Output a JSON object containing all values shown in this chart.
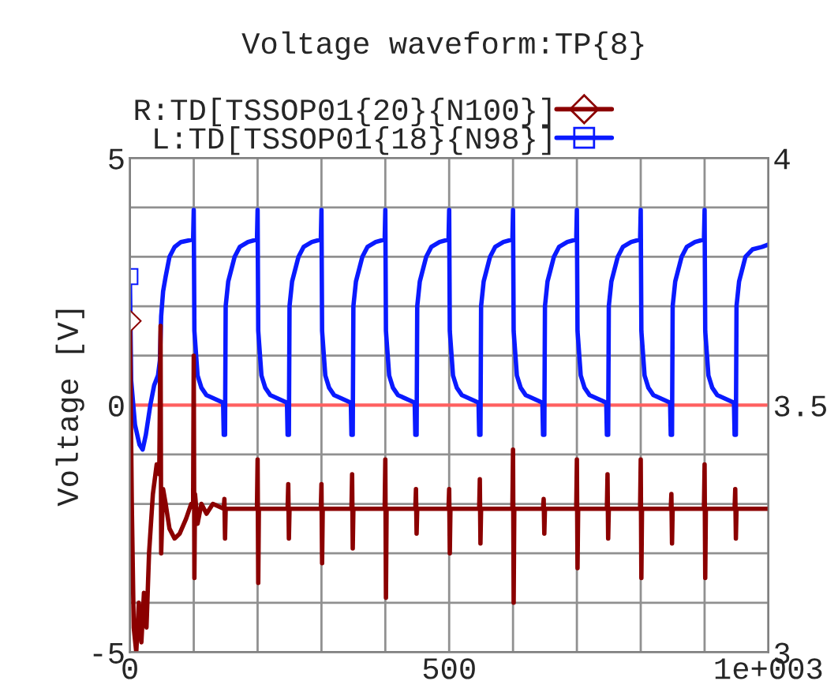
{
  "chart_data": {
    "type": "line",
    "title": "Voltage waveform:TP{8}",
    "ylabel": "Voltage [V]",
    "xlim": [
      0,
      1000
    ],
    "xticks": [
      0,
      {
        "value": 100,
        "label": null
      },
      {
        "value": 200,
        "label": null
      },
      {
        "value": 300,
        "label": null
      },
      {
        "value": 400,
        "label": null
      },
      500,
      {
        "value": 600,
        "label": null
      },
      {
        "value": 700,
        "label": null
      },
      {
        "value": 800,
        "label": null
      },
      {
        "value": 900,
        "label": null
      },
      {
        "value": 1000,
        "label": "1e+003"
      }
    ],
    "ylim": [
      -5,
      5
    ],
    "yticks": [
      -5,
      {
        "value": -4,
        "label": null
      },
      {
        "value": -3,
        "label": null
      },
      {
        "value": -2,
        "label": null
      },
      {
        "value": -1,
        "label": null
      },
      0,
      {
        "value": 1,
        "label": null
      },
      {
        "value": 2,
        "label": null
      },
      {
        "value": 3,
        "label": null
      },
      {
        "value": 4,
        "label": null
      },
      5
    ],
    "y2lim": [
      3,
      4
    ],
    "y2ticks": [
      3,
      3.5,
      4
    ],
    "grid": true,
    "legend": "top",
    "line_style": "solid",
    "ref_lines": [
      {
        "axis": "y",
        "value": 0,
        "color": "#ff6060"
      }
    ],
    "series": [
      {
        "name": "R:TD[TSSOP01{20}{N100}]",
        "color": "#8b0000",
        "axis": "y2",
        "x": [
          0,
          3,
          6,
          10,
          14,
          18,
          22,
          26,
          30,
          36,
          42,
          46,
          48,
          49,
          52,
          56,
          62,
          70,
          78,
          88,
          96,
          99,
          100,
          101,
          102,
          106,
          112,
          120,
          130,
          147,
          148,
          149,
          150,
          199,
          200,
          201,
          202,
          247,
          248,
          249,
          250,
          299,
          300,
          301,
          302,
          347,
          348,
          349,
          350,
          399,
          400,
          401,
          402,
          447,
          448,
          449,
          450,
          499,
          500,
          501,
          502,
          547,
          548,
          549,
          550,
          599,
          600,
          601,
          602,
          647,
          648,
          649,
          650,
          699,
          700,
          701,
          702,
          747,
          748,
          749,
          750,
          799,
          800,
          801,
          802,
          847,
          848,
          849,
          850,
          899,
          900,
          901,
          902,
          947,
          948,
          949,
          950,
          1000
        ],
        "values": [
          3.67,
          3.3,
          3.05,
          3.0,
          3.1,
          3.02,
          3.12,
          3.05,
          3.2,
          3.32,
          3.38,
          3.36,
          3.66,
          3.2,
          3.33,
          3.3,
          3.25,
          3.23,
          3.24,
          3.27,
          3.3,
          3.3,
          3.6,
          3.15,
          3.32,
          3.26,
          3.3,
          3.28,
          3.3,
          3.29,
          3.31,
          3.23,
          3.29,
          3.29,
          3.39,
          3.14,
          3.29,
          3.29,
          3.34,
          3.23,
          3.29,
          3.29,
          3.34,
          3.18,
          3.29,
          3.29,
          3.36,
          3.21,
          3.29,
          3.29,
          3.39,
          3.11,
          3.29,
          3.29,
          3.33,
          3.24,
          3.29,
          3.29,
          3.33,
          3.2,
          3.29,
          3.29,
          3.35,
          3.22,
          3.29,
          3.29,
          3.41,
          3.1,
          3.29,
          3.29,
          3.31,
          3.24,
          3.29,
          3.29,
          3.39,
          3.17,
          3.29,
          3.29,
          3.36,
          3.23,
          3.29,
          3.29,
          3.39,
          3.15,
          3.29,
          3.29,
          3.32,
          3.22,
          3.29,
          3.29,
          3.38,
          3.15,
          3.29,
          3.29,
          3.33,
          3.23,
          3.29,
          3.29
        ]
      },
      {
        "name": "L:TD[TSSOP01{18}{N98}]",
        "color": "#0a1aff",
        "x": [
          0,
          2,
          8,
          15,
          20,
          25,
          32,
          38,
          44,
          47,
          49,
          52,
          56,
          62,
          70,
          80,
          99,
          100,
          101,
          106,
          112,
          120,
          146,
          147,
          149,
          150,
          154,
          158,
          164,
          172,
          185,
          199,
          200,
          201,
          206,
          212,
          220,
          246,
          247,
          249,
          250,
          254,
          258,
          264,
          272,
          285,
          299,
          300,
          301,
          306,
          312,
          320,
          346,
          347,
          349,
          350,
          354,
          358,
          364,
          372,
          385,
          399,
          400,
          401,
          406,
          412,
          420,
          446,
          447,
          449,
          450,
          454,
          458,
          464,
          472,
          485,
          499,
          500,
          501,
          506,
          512,
          520,
          546,
          547,
          549,
          550,
          554,
          558,
          564,
          572,
          585,
          599,
          600,
          601,
          606,
          612,
          620,
          646,
          647,
          649,
          650,
          654,
          658,
          664,
          672,
          685,
          699,
          700,
          701,
          706,
          712,
          720,
          746,
          747,
          749,
          750,
          754,
          758,
          764,
          772,
          785,
          799,
          800,
          801,
          806,
          812,
          820,
          846,
          847,
          849,
          850,
          854,
          858,
          864,
          872,
          885,
          899,
          900,
          901,
          906,
          912,
          920,
          946,
          947,
          949,
          950,
          954,
          958,
          964,
          975,
          990,
          1000
        ],
        "values": [
          2.6,
          0.5,
          -0.4,
          -0.8,
          -0.9,
          -0.6,
          0.0,
          0.4,
          0.6,
          0.9,
          1.8,
          2.3,
          2.6,
          3.0,
          3.2,
          3.3,
          3.35,
          3.95,
          1.5,
          0.6,
          0.35,
          0.2,
          0.05,
          -0.6,
          -0.6,
          2.0,
          2.5,
          2.7,
          3.0,
          3.2,
          3.3,
          3.35,
          3.95,
          1.5,
          0.6,
          0.35,
          0.2,
          0.05,
          -0.6,
          -0.6,
          2.0,
          2.5,
          2.7,
          3.0,
          3.2,
          3.3,
          3.35,
          3.95,
          1.5,
          0.6,
          0.35,
          0.2,
          0.05,
          -0.6,
          -0.6,
          2.0,
          2.5,
          2.7,
          3.0,
          3.2,
          3.3,
          3.35,
          3.95,
          1.5,
          0.6,
          0.35,
          0.2,
          0.05,
          -0.6,
          -0.6,
          2.0,
          2.5,
          2.7,
          3.0,
          3.2,
          3.3,
          3.35,
          3.95,
          1.5,
          0.6,
          0.35,
          0.2,
          0.05,
          -0.6,
          -0.6,
          2.0,
          2.5,
          2.7,
          3.0,
          3.2,
          3.3,
          3.35,
          3.95,
          1.5,
          0.6,
          0.35,
          0.2,
          0.05,
          -0.6,
          -0.6,
          2.0,
          2.5,
          2.7,
          3.0,
          3.2,
          3.3,
          3.35,
          3.95,
          1.5,
          0.6,
          0.35,
          0.2,
          0.05,
          -0.6,
          -0.6,
          2.0,
          2.5,
          2.7,
          3.0,
          3.2,
          3.3,
          3.35,
          3.95,
          1.5,
          0.6,
          0.35,
          0.2,
          0.05,
          -0.6,
          -0.6,
          2.0,
          2.5,
          2.7,
          3.0,
          3.2,
          3.3,
          3.35,
          3.95,
          1.5,
          0.6,
          0.35,
          0.2,
          0.05,
          -0.6,
          -0.6,
          2.0,
          2.5,
          2.7,
          3.0,
          3.15,
          3.2,
          3.25
        ]
      }
    ]
  }
}
